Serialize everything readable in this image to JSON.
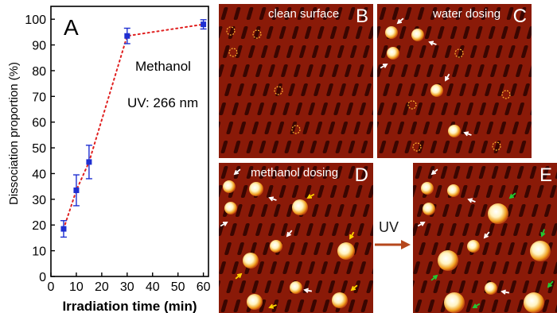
{
  "figure": {
    "panels": [
      {
        "letter": "B",
        "title": "clean surface"
      },
      {
        "letter": "C",
        "title": "water dosing"
      },
      {
        "letter": "D",
        "title": "methanol dosing"
      },
      {
        "letter": "E",
        "title": ""
      }
    ],
    "uv_arrow_label": "UV",
    "colors": {
      "stm_base": "#8a1a08",
      "stm_row": "#2a0400",
      "spot": "#fff3c0",
      "arrow_white": "#ffffff",
      "arrow_yellow": "#ffd400",
      "arrow_green": "#22cc33",
      "vacancy_circle": "#ffb030",
      "uv_arrow": "#b5471c"
    }
  },
  "chart_data": {
    "type": "scatter",
    "panel_letter": "A",
    "xlabel": "Irradiation time (min)",
    "ylabel": "Dissociation proportion (%)",
    "xlim": [
      0,
      62
    ],
    "ylim": [
      0,
      105
    ],
    "xticks": [
      0,
      10,
      20,
      30,
      40,
      50,
      60
    ],
    "yticks": [
      0,
      10,
      20,
      30,
      40,
      50,
      60,
      70,
      80,
      90,
      100
    ],
    "annotations": [
      "Methanol",
      "UV: 266 nm"
    ],
    "marker_color": "#1f2fd1",
    "line_color": "#e02020",
    "line_style": "dotted",
    "points": [
      {
        "x": 5,
        "y": 18.5,
        "err": 3.2
      },
      {
        "x": 10,
        "y": 33.5,
        "err": 6.0
      },
      {
        "x": 15,
        "y": 44.5,
        "err": 6.5
      },
      {
        "x": 30,
        "y": 93.5,
        "err": 3.0
      },
      {
        "x": 60,
        "y": 98,
        "err": 1.8
      }
    ]
  }
}
